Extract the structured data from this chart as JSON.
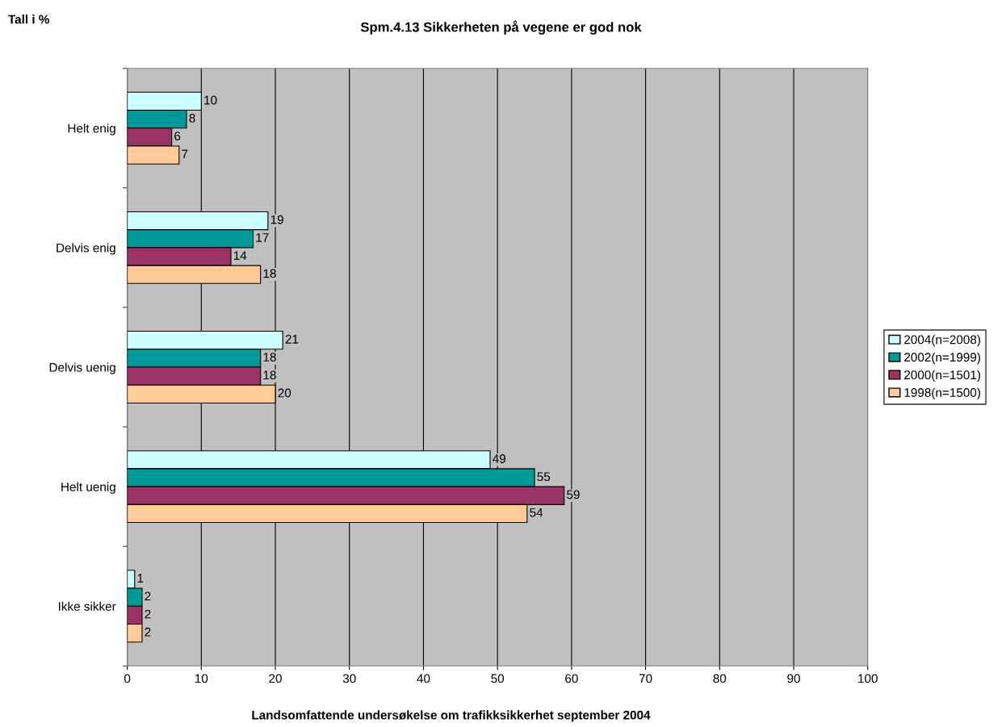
{
  "chart_data": {
    "type": "bar",
    "orientation": "horizontal",
    "title": "Spm.4.13 Sikkerheten på vegene er god nok",
    "categories": [
      "Helt enig",
      "Delvis enig",
      "Delvis uenig",
      "Helt uenig",
      "Ikke sikker"
    ],
    "series": [
      {
        "name": "2004(n=2008)",
        "color": "#ccffff",
        "values": [
          10,
          19,
          21,
          49,
          1
        ]
      },
      {
        "name": "2002(n=1999)",
        "color": "#009999",
        "values": [
          8,
          17,
          18,
          55,
          2
        ]
      },
      {
        "name": "2000(n=1501)",
        "color": "#993366",
        "values": [
          6,
          14,
          18,
          59,
          2
        ]
      },
      {
        "name": "1998(n=1500)",
        "color": "#ffcc99",
        "values": [
          7,
          18,
          20,
          54,
          2
        ]
      }
    ],
    "xlim": [
      0,
      100
    ],
    "xticks": [
      0,
      10,
      20,
      30,
      40,
      50,
      60,
      70,
      80,
      90,
      100
    ],
    "grid": "x",
    "legend": "right",
    "data_labels": true,
    "annotations": [
      "Tall i %",
      "Landsomfattende undersøkelse om trafikksikkerhet september 2004"
    ]
  }
}
